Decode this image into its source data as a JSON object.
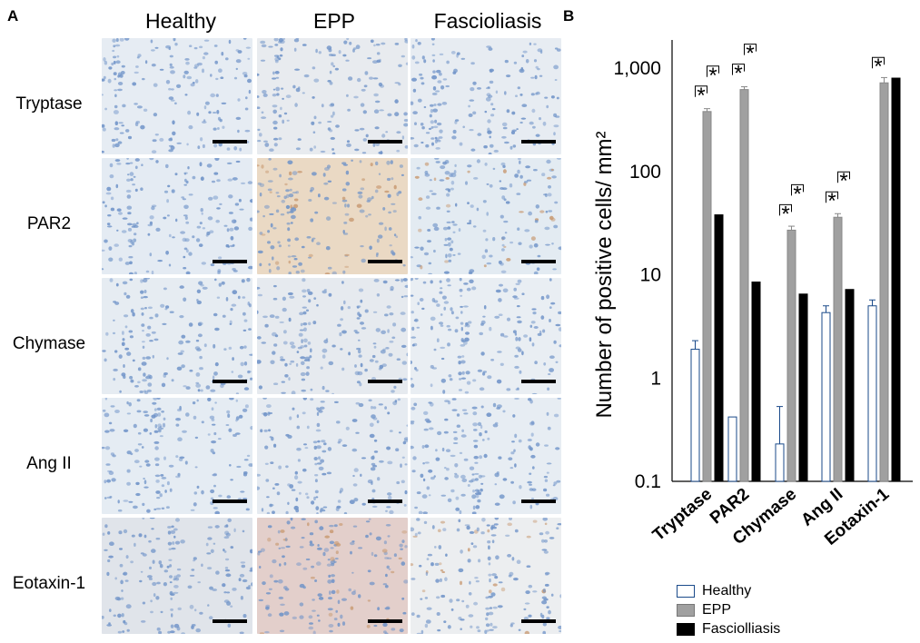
{
  "panel_a": {
    "letter": "A",
    "columns": [
      "Healthy",
      "EPP",
      "Fascioliasis"
    ],
    "rows": [
      "Tryptase",
      "PAR2",
      "Chymase",
      "Ang II",
      "Eotaxin-1"
    ]
  },
  "panel_b": {
    "letter": "B"
  },
  "chart_data": {
    "type": "bar",
    "log_scale": true,
    "categories": [
      "Tryptase",
      "PAR2",
      "Chymase",
      "Ang II",
      "Eotaxin-1"
    ],
    "series": [
      {
        "name": "Healthy",
        "values": [
          1.9,
          0.42,
          0.23,
          4.3,
          5.0
        ],
        "error": [
          0.4,
          0,
          0.3,
          0.7,
          0.7
        ]
      },
      {
        "name": "EPP",
        "values": [
          380,
          620,
          27,
          36,
          720
        ],
        "error": [
          25,
          40,
          2.5,
          3,
          90
        ]
      },
      {
        "name": "Fasciolliasis",
        "values": [
          38,
          8.5,
          6.5,
          7.2,
          800
        ],
        "error": [
          0,
          0,
          0,
          0,
          0
        ]
      }
    ],
    "ylabel": "Number of positive cells/ mm²",
    "yticks": [
      "0.1",
      "1",
      "10",
      "100",
      "1,000"
    ],
    "ylim": [
      0.1,
      1000
    ],
    "significance_marker": "*",
    "colors": {
      "Healthy": "#ffffff",
      "EPP": "#a0a0a0",
      "Fascioliasis": "#000000",
      "outline": "#1a4a8a"
    }
  }
}
